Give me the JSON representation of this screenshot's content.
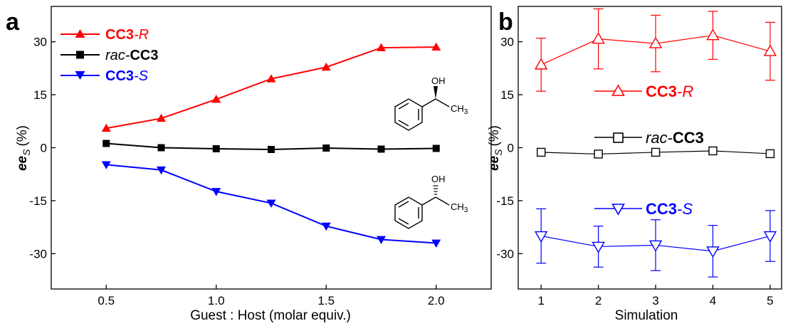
{
  "chart_data": [
    {
      "panel": "a",
      "type": "line",
      "xlabel": "Guest : Host (molar equiv.)",
      "ylabel_main": "ee",
      "ylabel_sub": "S",
      "ylabel_unit": "(%)",
      "xlim": [
        0.25,
        2.25
      ],
      "ylim": [
        -40,
        40
      ],
      "xticks": [
        "0.5",
        "1.0",
        "1.5",
        "2.0"
      ],
      "xtick_values": [
        0.5,
        1.0,
        1.5,
        2.0
      ],
      "yticks": [
        "30",
        "15",
        "0",
        "-15",
        "-30"
      ],
      "ytick_values": [
        30,
        15,
        0,
        -15,
        -30
      ],
      "x": [
        0.5,
        0.75,
        1.0,
        1.25,
        1.5,
        1.75,
        2.0
      ],
      "series": [
        {
          "name": "CC3-R",
          "name_bold": "CC3",
          "name_italic": "-R",
          "color": "#ff0000",
          "marker": "triangle-up-filled",
          "values": [
            5.5,
            8.3,
            13.7,
            19.5,
            22.8,
            28.3,
            28.5
          ]
        },
        {
          "name": "rac-CC3",
          "name_italic": "rac-",
          "name_bold": "CC3",
          "color": "#000000",
          "marker": "square-filled",
          "values": [
            1.2,
            0.0,
            -0.3,
            -0.5,
            -0.1,
            -0.4,
            -0.2
          ]
        },
        {
          "name": "CC3-S",
          "name_bold": "CC3",
          "name_italic": "-S",
          "color": "#0000ff",
          "marker": "triangle-down-filled",
          "values": [
            -4.8,
            -6.3,
            -12.4,
            -15.7,
            -22.2,
            -26.0,
            -27.0
          ]
        }
      ],
      "structure_labels": {
        "oh": "OH",
        "ch3": "CH",
        "ch3_sub": "3"
      }
    },
    {
      "panel": "b",
      "type": "line",
      "xlabel": "Simulation",
      "ylabel_main": "ee",
      "ylabel_sub": "S",
      "ylabel_unit": "(%)",
      "xlim": [
        0.6,
        5.2
      ],
      "ylim": [
        -40,
        40
      ],
      "xticks": [
        "1",
        "2",
        "3",
        "4",
        "5"
      ],
      "xtick_values": [
        1,
        2,
        3,
        4,
        5
      ],
      "yticks": [
        "30",
        "15",
        "0",
        "-15",
        "-30"
      ],
      "ytick_values": [
        30,
        15,
        0,
        -15,
        -30
      ],
      "x": [
        1,
        2,
        3,
        4,
        5
      ],
      "series": [
        {
          "name": "CC3-R",
          "name_bold": "CC3",
          "name_italic": "-R",
          "color": "#ff0000",
          "marker": "triangle-up-open",
          "values": [
            23.5,
            30.8,
            29.5,
            31.8,
            27.3
          ],
          "errors": [
            7.5,
            8.5,
            8.0,
            6.8,
            8.2
          ]
        },
        {
          "name": "rac-CC3",
          "name_italic": "rac-",
          "name_bold": "CC3",
          "color": "#000000",
          "marker": "square-open",
          "values": [
            -1.3,
            -1.8,
            -1.3,
            -0.9,
            -1.7
          ],
          "errors": [
            0,
            0,
            0,
            0,
            0
          ]
        },
        {
          "name": "CC3-S",
          "name_bold": "CC3",
          "name_italic": "-S",
          "color": "#0000ff",
          "marker": "triangle-down-open",
          "values": [
            -25.0,
            -28.0,
            -27.6,
            -29.3,
            -25.0
          ],
          "errors": [
            7.7,
            5.8,
            7.2,
            7.3,
            7.2
          ]
        }
      ]
    }
  ]
}
